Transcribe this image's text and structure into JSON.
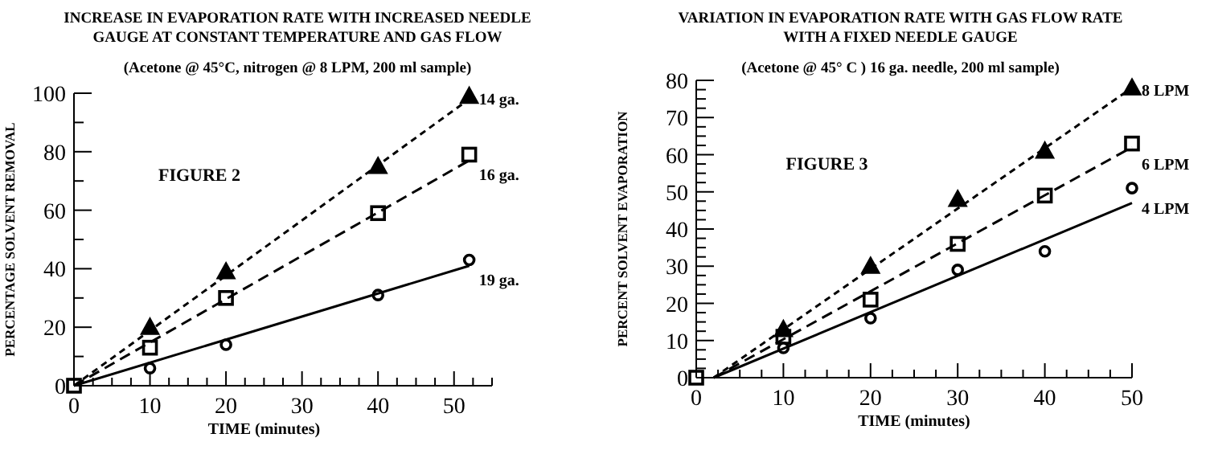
{
  "chart_data": [
    {
      "type": "scatter",
      "title": "INCREASE IN EVAPORATION RATE WITH INCREASED NEEDLE GAUGE AT  CONSTANT TEMPERATURE AND GAS FLOW",
      "subtitle": "(Acetone @ 45°C, nitrogen @ 8 LPM, 200 ml sample)",
      "xlabel": "TIME (minutes)",
      "ylabel": "PERCENTAGE SOLVENT REMOVAL",
      "annotations": [
        "FIGURE 2"
      ],
      "legend": false,
      "grid": false,
      "xlim": [
        0,
        55
      ],
      "ylim": [
        0,
        100
      ],
      "xticks": [
        0,
        {
          "value": 2.5,
          "label": null
        },
        {
          "value": 5,
          "label": null
        },
        {
          "value": 7.5,
          "label": null
        },
        10,
        {
          "value": 12.5,
          "label": null
        },
        {
          "value": 15,
          "label": null
        },
        {
          "value": 17.5,
          "label": null
        },
        20,
        {
          "value": 22.5,
          "label": null
        },
        {
          "value": 25,
          "label": null
        },
        {
          "value": 27.5,
          "label": null
        },
        30,
        {
          "value": 32.5,
          "label": null
        },
        {
          "value": 35,
          "label": null
        },
        {
          "value": 37.5,
          "label": null
        },
        40,
        {
          "value": 42.5,
          "label": null
        },
        {
          "value": 45,
          "label": null
        },
        {
          "value": 47.5,
          "label": null
        },
        50,
        {
          "value": 52.5,
          "label": null
        },
        {
          "value": 55,
          "label": null
        }
      ],
      "yticks": [
        0,
        {
          "value": 10,
          "label": null
        },
        20,
        {
          "value": 30,
          "label": null
        },
        40,
        {
          "value": 50,
          "label": null
        },
        60,
        {
          "value": 70,
          "label": null
        },
        80,
        {
          "value": 90,
          "label": null
        },
        100
      ],
      "series": [
        {
          "name": "14 ga.",
          "type": "scatter",
          "marker": "triangle",
          "color": "#000000",
          "x": [
            10,
            20,
            40,
            52
          ],
          "values": [
            20,
            39,
            75,
            99
          ]
        },
        {
          "name": "16 ga.",
          "type": "scatter",
          "marker": "square",
          "color": "#000000",
          "x": [
            0,
            10,
            20,
            40,
            52
          ],
          "values": [
            0,
            13,
            30,
            59,
            79
          ]
        },
        {
          "name": "19 ga.",
          "type": "scatter",
          "marker": "circle",
          "color": "#000000",
          "x": [
            10,
            20,
            40,
            52
          ],
          "values": [
            6,
            14,
            31,
            43
          ]
        },
        {
          "type": "line",
          "line_style": "dotted",
          "color": "#000000",
          "x": [
            0,
            52
          ],
          "values": [
            0,
            98
          ]
        },
        {
          "type": "line",
          "line_style": "dashed",
          "color": "#000000",
          "x": [
            0,
            52
          ],
          "values": [
            0,
            77
          ]
        },
        {
          "type": "line",
          "line_style": "solid",
          "color": "#000000",
          "x": [
            0,
            52
          ],
          "values": [
            0,
            41
          ]
        }
      ]
    },
    {
      "type": "scatter",
      "title": "VARIATION IN EVAPORATION RATE WITH GAS FLOW RATE WITH A FIXED NEEDLE GAUGE",
      "subtitle": "(Acetone @ 45° C ) 16 ga. needle, 200 ml sample)",
      "xlabel": "TIME (minutes)",
      "ylabel": "PERCENT SOLVENT EVAPORATION",
      "annotations": [
        "FIGURE 3"
      ],
      "legend": false,
      "grid": false,
      "xlim": [
        0,
        50
      ],
      "ylim": [
        0,
        80
      ],
      "xticks": [
        0,
        {
          "value": 2.5,
          "label": null
        },
        {
          "value": 5,
          "label": null
        },
        {
          "value": 7.5,
          "label": null
        },
        10,
        {
          "value": 12.5,
          "label": null
        },
        {
          "value": 15,
          "label": null
        },
        {
          "value": 17.5,
          "label": null
        },
        20,
        {
          "value": 22.5,
          "label": null
        },
        {
          "value": 25,
          "label": null
        },
        {
          "value": 27.5,
          "label": null
        },
        30,
        {
          "value": 32.5,
          "label": null
        },
        {
          "value": 35,
          "label": null
        },
        {
          "value": 37.5,
          "label": null
        },
        40,
        {
          "value": 42.5,
          "label": null
        },
        {
          "value": 45,
          "label": null
        },
        {
          "value": 47.5,
          "label": null
        },
        50
      ],
      "yticks": [
        0,
        {
          "value": 2.5,
          "label": null
        },
        {
          "value": 5,
          "label": null
        },
        {
          "value": 7.5,
          "label": null
        },
        10,
        {
          "value": 12.5,
          "label": null
        },
        {
          "value": 15,
          "label": null
        },
        {
          "value": 17.5,
          "label": null
        },
        20,
        {
          "value": 22.5,
          "label": null
        },
        {
          "value": 25,
          "label": null
        },
        {
          "value": 27.5,
          "label": null
        },
        30,
        {
          "value": 32.5,
          "label": null
        },
        {
          "value": 35,
          "label": null
        },
        {
          "value": 37.5,
          "label": null
        },
        40,
        {
          "value": 42.5,
          "label": null
        },
        {
          "value": 45,
          "label": null
        },
        {
          "value": 47.5,
          "label": null
        },
        50,
        {
          "value": 52.5,
          "label": null
        },
        {
          "value": 55,
          "label": null
        },
        {
          "value": 57.5,
          "label": null
        },
        60,
        {
          "value": 62.5,
          "label": null
        },
        {
          "value": 65,
          "label": null
        },
        {
          "value": 67.5,
          "label": null
        },
        70,
        {
          "value": 72.5,
          "label": null
        },
        {
          "value": 75,
          "label": null
        },
        {
          "value": 77.5,
          "label": null
        },
        80
      ],
      "series": [
        {
          "name": "8 LPM",
          "type": "scatter",
          "marker": "triangle",
          "color": "#000000",
          "x": [
            10,
            20,
            30,
            40,
            50
          ],
          "values": [
            13,
            30,
            48,
            61,
            78
          ]
        },
        {
          "name": "6 LPM",
          "type": "scatter",
          "marker": "square",
          "color": "#000000",
          "x": [
            0,
            10,
            20,
            30,
            40,
            50
          ],
          "values": [
            0,
            11,
            21,
            36,
            49,
            63
          ]
        },
        {
          "name": "4 LPM",
          "type": "scatter",
          "marker": "circle",
          "color": "#000000",
          "x": [
            10,
            20,
            30,
            40,
            50
          ],
          "values": [
            8,
            16,
            29,
            34,
            51
          ]
        },
        {
          "type": "line",
          "line_style": "dotted",
          "color": "#000000",
          "x": [
            2,
            50
          ],
          "values": [
            0,
            78
          ]
        },
        {
          "type": "line",
          "line_style": "dashed",
          "color": "#000000",
          "x": [
            2,
            50
          ],
          "values": [
            0,
            62
          ]
        },
        {
          "type": "line",
          "line_style": "solid",
          "color": "#000000",
          "x": [
            2,
            50
          ],
          "values": [
            0,
            47
          ]
        }
      ]
    }
  ]
}
